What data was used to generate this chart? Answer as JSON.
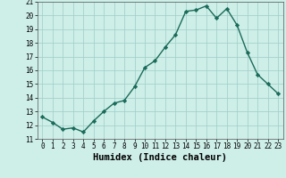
{
  "x": [
    0,
    1,
    2,
    3,
    4,
    5,
    6,
    7,
    8,
    9,
    10,
    11,
    12,
    13,
    14,
    15,
    16,
    17,
    18,
    19,
    20,
    21,
    22,
    23
  ],
  "y": [
    12.6,
    12.2,
    11.7,
    11.8,
    11.5,
    12.3,
    13.0,
    13.6,
    13.8,
    14.8,
    16.2,
    16.7,
    17.7,
    18.6,
    20.3,
    20.4,
    20.7,
    19.8,
    20.5,
    19.3,
    17.3,
    15.7,
    15.0,
    14.3
  ],
  "line_color": "#1a6b5a",
  "marker": "D",
  "marker_size": 2.2,
  "bg_color": "#ceeee8",
  "grid_color": "#9ecec8",
  "xlabel": "Humidex (Indice chaleur)",
  "xlim": [
    -0.5,
    23.5
  ],
  "ylim": [
    11,
    21
  ],
  "yticks": [
    11,
    12,
    13,
    14,
    15,
    16,
    17,
    18,
    19,
    20,
    21
  ],
  "xticks": [
    0,
    1,
    2,
    3,
    4,
    5,
    6,
    7,
    8,
    9,
    10,
    11,
    12,
    13,
    14,
    15,
    16,
    17,
    18,
    19,
    20,
    21,
    22,
    23
  ],
  "tick_fontsize": 5.5,
  "xlabel_fontsize": 7.5,
  "linewidth": 1.0
}
